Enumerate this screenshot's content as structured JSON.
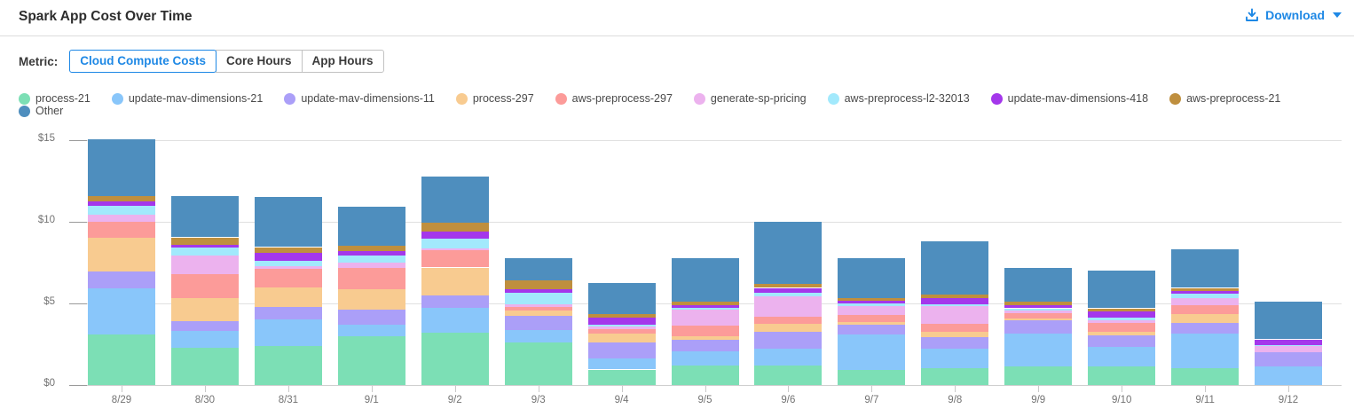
{
  "header": {
    "title": "Spark App Cost Over Time",
    "download_label": "Download"
  },
  "metric": {
    "label": "Metric:",
    "options": [
      "Cloud Compute Costs",
      "Core Hours",
      "App Hours"
    ],
    "selected": "Cloud Compute Costs"
  },
  "colors": {
    "accent": "#1E88E5",
    "grid": "#e0e0e0",
    "axis_text": "#737373"
  },
  "chart_data": {
    "type": "bar",
    "stacked": true,
    "title": "Spark App Cost Over Time",
    "xlabel": "",
    "ylabel": "",
    "ylim": [
      0,
      15
    ],
    "y_tick_values": [
      0,
      5,
      10,
      15
    ],
    "y_tick_labels": [
      "$0",
      "$5",
      "$10",
      "$15"
    ],
    "grid": "horizontal",
    "legend_position": "top",
    "categories": [
      "8/29",
      "8/30",
      "8/31",
      "9/1",
      "9/2",
      "9/3",
      "9/4",
      "9/5",
      "9/6",
      "9/7",
      "9/8",
      "9/9",
      "9/10",
      "9/11",
      "9/12"
    ],
    "series": [
      {
        "name": "process-21",
        "color": "#7CDFB5",
        "values": [
          3.1,
          2.3,
          2.4,
          3.0,
          3.2,
          2.6,
          0.95,
          1.2,
          1.2,
          0.95,
          1.05,
          1.15,
          1.15,
          1.05,
          0
        ]
      },
      {
        "name": "update-mav-dimensions-21",
        "color": "#89C6FA",
        "values": [
          2.8,
          1.0,
          1.6,
          0.7,
          1.55,
          0.75,
          0.7,
          0.85,
          1.05,
          2.15,
          1.2,
          2.0,
          1.2,
          2.1,
          1.15
        ]
      },
      {
        "name": "update-mav-dimensions-11",
        "color": "#AB9FF8",
        "values": [
          1.05,
          0.6,
          0.8,
          0.9,
          0.75,
          0.9,
          0.95,
          0.7,
          1.0,
          0.6,
          0.7,
          0.8,
          0.7,
          0.65,
          0.85
        ]
      },
      {
        "name": "process-297",
        "color": "#F8CB90",
        "values": [
          2.05,
          1.45,
          1.2,
          1.25,
          1.7,
          0.3,
          0.55,
          0.25,
          0.5,
          0.15,
          0.3,
          0.15,
          0.2,
          0.55,
          0
        ]
      },
      {
        "name": "aws-preprocess-297",
        "color": "#FC9B99",
        "values": [
          1.0,
          1.45,
          1.1,
          1.3,
          1.05,
          0.25,
          0.3,
          0.65,
          0.45,
          0.45,
          0.5,
          0.3,
          0.55,
          0.55,
          0
        ]
      },
      {
        "name": "generate-sp-pricing",
        "color": "#ECB2EE",
        "values": [
          0.45,
          1.15,
          0.2,
          0.35,
          0.1,
          0.15,
          0.15,
          0.95,
          1.25,
          0.55,
          1.1,
          0.15,
          0.15,
          0.45,
          0.4
        ]
      },
      {
        "name": "aws-preprocess-l2-32013",
        "color": "#A2E9FC",
        "values": [
          0.55,
          0.5,
          0.3,
          0.45,
          0.6,
          0.7,
          0.1,
          0.15,
          0.2,
          0.15,
          0.1,
          0.15,
          0.2,
          0.25,
          0.05
        ]
      },
      {
        "name": "update-mav-dimensions-418",
        "color": "#A437EB",
        "values": [
          0.25,
          0.15,
          0.5,
          0.25,
          0.45,
          0.2,
          0.45,
          0.15,
          0.3,
          0.15,
          0.4,
          0.2,
          0.35,
          0.15,
          0.35
        ]
      },
      {
        "name": "aws-preprocess-21",
        "color": "#BF8F3E",
        "values": [
          0.35,
          0.45,
          0.35,
          0.35,
          0.55,
          0.55,
          0.2,
          0.2,
          0.25,
          0.2,
          0.2,
          0.2,
          0.2,
          0.2,
          0
        ]
      },
      {
        "name": "Other",
        "color": "#4E8EBE",
        "values": [
          3.45,
          2.55,
          3.05,
          2.4,
          2.85,
          1.35,
          1.9,
          2.7,
          3.8,
          2.4,
          3.25,
          2.05,
          2.3,
          2.35,
          2.3
        ]
      }
    ]
  }
}
